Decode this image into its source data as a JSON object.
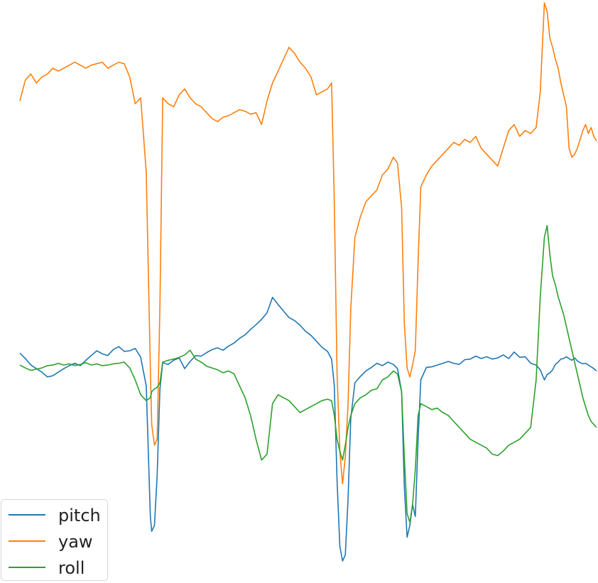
{
  "chart_data": {
    "type": "line",
    "title": "",
    "xlabel": "",
    "ylabel": "",
    "axes_visible": false,
    "grid": false,
    "legend_position": "bottom-left",
    "x": [
      0,
      8,
      16,
      24,
      32,
      40,
      48,
      56,
      64,
      72,
      80,
      88,
      96,
      104,
      112,
      120,
      128,
      136,
      144,
      152,
      160,
      168,
      176,
      184,
      190,
      192,
      196,
      200,
      204,
      208,
      216,
      224,
      232,
      240,
      248,
      256,
      264,
      272,
      280,
      288,
      296,
      304,
      312,
      320,
      328,
      336,
      344,
      352,
      360,
      368,
      376,
      384,
      392,
      400,
      408,
      416,
      424,
      432,
      440,
      448,
      454,
      458,
      462,
      466,
      470,
      474,
      478,
      482,
      488,
      496,
      504,
      512,
      520,
      528,
      536,
      544,
      550,
      556,
      560,
      564,
      568,
      572,
      576,
      580,
      584,
      592,
      600,
      608,
      616,
      624,
      632,
      640,
      648,
      656,
      664,
      672,
      680,
      688,
      696,
      704,
      712,
      720,
      728,
      736,
      744,
      752,
      758,
      764,
      768,
      772,
      776,
      780,
      784,
      788,
      792,
      796,
      800,
      804,
      808,
      812,
      816,
      820,
      824,
      828,
      832,
      836,
      840
    ],
    "series": [
      {
        "name": "pitch",
        "color": "#1f77b4",
        "values": [
          -0.1,
          -0.28,
          -0.5,
          -0.62,
          -0.74,
          -0.9,
          -0.86,
          -0.74,
          -0.62,
          -0.52,
          -0.44,
          -0.52,
          -0.34,
          -0.18,
          -0.02,
          -0.12,
          -0.18,
          0.02,
          0.12,
          -0.04,
          -0.02,
          0.06,
          -0.24,
          -1.2,
          -5.6,
          -6.1,
          -5.9,
          -4.2,
          -1.3,
          -0.42,
          -0.48,
          -0.34,
          -0.26,
          -0.62,
          -0.38,
          -0.18,
          -0.2,
          -0.08,
          0.02,
          0.08,
          0.0,
          0.14,
          0.24,
          0.4,
          0.52,
          0.7,
          0.86,
          1.04,
          1.26,
          1.78,
          1.54,
          1.32,
          1.1,
          1.0,
          0.84,
          0.64,
          0.5,
          0.3,
          0.1,
          -0.04,
          -0.3,
          -1.2,
          -4.4,
          -6.6,
          -7.1,
          -6.9,
          -5.0,
          -2.3,
          -1.1,
          -0.88,
          -0.7,
          -0.58,
          -0.44,
          -0.52,
          -0.4,
          -0.48,
          -0.62,
          -1.4,
          -4.6,
          -6.3,
          -5.9,
          -5.2,
          -5.6,
          -3.0,
          -1.0,
          -0.58,
          -0.56,
          -0.5,
          -0.44,
          -0.38,
          -0.44,
          -0.48,
          -0.32,
          -0.3,
          -0.2,
          -0.28,
          -0.22,
          -0.3,
          -0.26,
          -0.16,
          -0.28,
          -0.06,
          -0.24,
          -0.22,
          -0.44,
          -0.5,
          -0.66,
          -1.0,
          -0.82,
          -0.76,
          -0.66,
          -0.48,
          -0.4,
          -0.3,
          -0.28,
          -0.22,
          -0.28,
          -0.34,
          -0.26,
          -0.36,
          -0.42,
          -0.46,
          -0.44,
          -0.5,
          -0.56,
          -0.62,
          -0.7
        ]
      },
      {
        "name": "yaw",
        "color": "#ff7f0e",
        "values": [
          8.4,
          9.1,
          9.3,
          9.0,
          9.2,
          9.3,
          9.5,
          9.4,
          9.5,
          9.6,
          9.7,
          9.6,
          9.5,
          9.6,
          9.65,
          9.7,
          9.5,
          9.6,
          9.7,
          9.65,
          9.2,
          8.3,
          8.5,
          6.0,
          -0.6,
          -2.5,
          -3.2,
          -3.0,
          1.5,
          8.5,
          8.3,
          8.2,
          8.6,
          8.8,
          8.5,
          8.3,
          8.2,
          8.0,
          7.8,
          7.7,
          7.85,
          7.9,
          8.0,
          8.1,
          8.05,
          7.95,
          8.0,
          7.6,
          8.4,
          9.0,
          9.4,
          9.8,
          10.2,
          10.0,
          9.7,
          9.5,
          9.2,
          8.6,
          8.7,
          8.8,
          9.0,
          5.0,
          -0.8,
          -3.4,
          -4.5,
          -3.6,
          -1.8,
          1.4,
          3.8,
          4.5,
          5.0,
          5.2,
          5.4,
          5.9,
          6.1,
          6.5,
          6.3,
          4.8,
          0.9,
          -0.6,
          -0.9,
          -0.5,
          0.0,
          3.0,
          5.5,
          5.9,
          6.2,
          6.4,
          6.6,
          6.8,
          7.0,
          6.9,
          7.1,
          7.0,
          7.2,
          6.8,
          6.6,
          6.4,
          6.2,
          6.8,
          7.4,
          7.6,
          7.2,
          7.4,
          7.3,
          7.5,
          8.7,
          11.7,
          11.4,
          10.5,
          10.2,
          9.8,
          9.5,
          9.0,
          8.6,
          8.2,
          6.8,
          6.5,
          6.6,
          6.8,
          7.1,
          7.4,
          7.6,
          7.3,
          7.5,
          7.2,
          7.05
        ]
      },
      {
        "name": "roll",
        "color": "#2ca02c",
        "values": [
          -0.5,
          -0.6,
          -0.68,
          -0.64,
          -0.6,
          -0.52,
          -0.5,
          -0.44,
          -0.5,
          -0.46,
          -0.52,
          -0.48,
          -0.42,
          -0.5,
          -0.46,
          -0.52,
          -0.5,
          -0.46,
          -0.44,
          -0.4,
          -0.6,
          -1.0,
          -1.5,
          -1.7,
          -1.6,
          -1.4,
          -1.3,
          -1.25,
          -1.1,
          -0.4,
          -0.34,
          -0.3,
          -0.24,
          -0.16,
          0.0,
          -0.3,
          -0.4,
          -0.54,
          -0.6,
          -0.66,
          -0.76,
          -0.7,
          -0.8,
          -1.2,
          -1.6,
          -2.2,
          -3.0,
          -3.7,
          -3.5,
          -1.8,
          -1.5,
          -1.6,
          -1.7,
          -1.9,
          -2.1,
          -2.0,
          -1.9,
          -1.8,
          -1.7,
          -1.65,
          -1.7,
          -2.2,
          -3.0,
          -3.4,
          -3.7,
          -3.2,
          -2.6,
          -2.2,
          -1.8,
          -1.6,
          -1.5,
          -1.35,
          -1.3,
          -1.0,
          -0.9,
          -0.7,
          -0.8,
          -1.4,
          -3.6,
          -5.5,
          -5.8,
          -5.2,
          -4.0,
          -2.2,
          -1.8,
          -1.9,
          -2.0,
          -1.95,
          -2.1,
          -2.2,
          -2.4,
          -2.6,
          -2.8,
          -3.0,
          -3.1,
          -3.2,
          -3.3,
          -3.5,
          -3.55,
          -3.4,
          -3.2,
          -3.1,
          -3.0,
          -2.8,
          -2.6,
          -1.0,
          1.8,
          3.8,
          4.2,
          3.2,
          2.5,
          2.2,
          1.8,
          1.5,
          1.2,
          0.8,
          0.4,
          0.0,
          -0.4,
          -0.8,
          -1.2,
          -1.6,
          -1.9,
          -2.2,
          -2.4,
          -2.5,
          -2.6
        ]
      }
    ]
  },
  "legend": {
    "entries": [
      "pitch",
      "yaw",
      "roll"
    ]
  }
}
